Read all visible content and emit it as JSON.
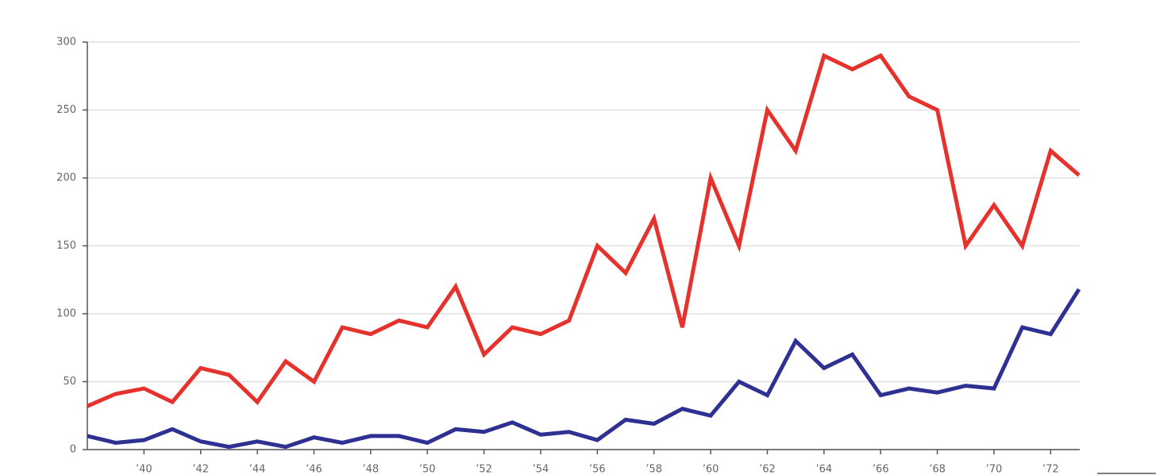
{
  "chart_data": {
    "type": "line",
    "categories": [
      null,
      null,
      "’40",
      null,
      "’42",
      null,
      "’44",
      null,
      "’46",
      null,
      "’48",
      null,
      "’50",
      null,
      "’52",
      null,
      "’54",
      null,
      "’56",
      null,
      "’58",
      null,
      "’60",
      null,
      "’62",
      null,
      "’64",
      null,
      "’66",
      null,
      "’68",
      null,
      "’70",
      null,
      "’72",
      null
    ],
    "series": [
      {
        "color": "#e5322d",
        "values": [
          32,
          41,
          45,
          35,
          60,
          55,
          35,
          65,
          50,
          90,
          85,
          95,
          90,
          120,
          70,
          90,
          85,
          95,
          150,
          130,
          170,
          90,
          200,
          150,
          250,
          220,
          290,
          280,
          290,
          260,
          250,
          150,
          180,
          150,
          220,
          202
        ]
      },
      {
        "color": "#2e3192",
        "values": [
          10,
          5,
          7,
          15,
          6,
          2,
          6,
          2,
          9,
          5,
          10,
          10,
          5,
          15,
          13,
          20,
          11,
          13,
          7,
          22,
          19,
          30,
          25,
          50,
          40,
          80,
          60,
          70,
          40,
          45,
          42,
          47,
          45,
          90,
          85,
          118
        ]
      }
    ],
    "ylim": [
      0,
      300
    ],
    "yticks": [
      0,
      50,
      100,
      150,
      200,
      250,
      300
    ],
    "grid": true
  }
}
